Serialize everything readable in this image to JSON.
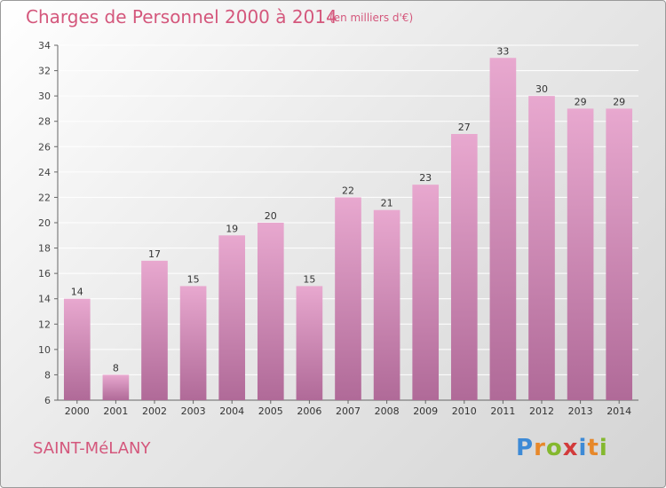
{
  "header": {
    "title": "Charges de Personnel 2000 à 2014",
    "subtitle": "(en milliers d'€)"
  },
  "footer": {
    "commune": "SAINT-MéLANY",
    "logo_letters": [
      "P",
      "r",
      "o",
      "x",
      "i",
      "t",
      "i"
    ]
  },
  "colors": {
    "accent": "#d4577c",
    "bar_top": "#e8a8cf",
    "bar_bottom": "#b06a98"
  },
  "chart_data": {
    "type": "bar",
    "title": "Charges de Personnel 2000 à 2014",
    "subtitle": "(en milliers d'€)",
    "categories": [
      "2000",
      "2001",
      "2002",
      "2003",
      "2004",
      "2005",
      "2006",
      "2007",
      "2008",
      "2009",
      "2010",
      "2011",
      "2012",
      "2013",
      "2014"
    ],
    "values": [
      14,
      8,
      17,
      15,
      19,
      20,
      15,
      22,
      21,
      23,
      27,
      33,
      30,
      29,
      29
    ],
    "ylim": [
      6,
      34
    ],
    "yticks": [
      6,
      8,
      10,
      12,
      14,
      16,
      18,
      20,
      22,
      24,
      26,
      28,
      30,
      32,
      34
    ],
    "grid": true
  }
}
